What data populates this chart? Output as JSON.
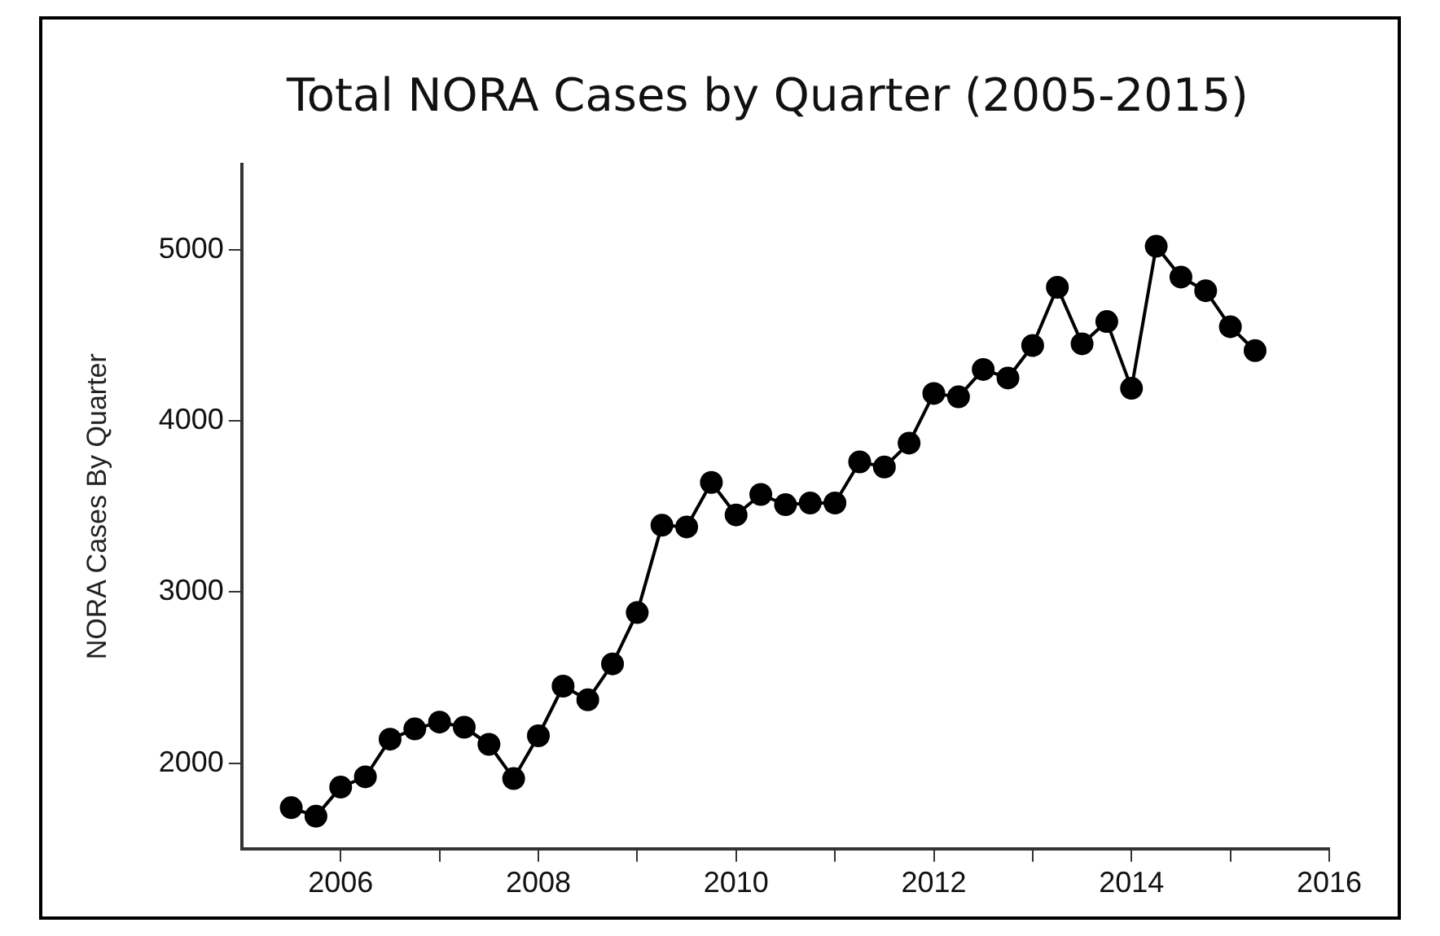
{
  "chart_data": {
    "type": "line",
    "title": "Total NORA Cases by Quarter (2005-2015)",
    "ylabel": "NORA Cases By Quarter",
    "x": [
      2005.5,
      2005.75,
      2006,
      2006.25,
      2006.5,
      2006.75,
      2007,
      2007.25,
      2007.5,
      2007.75,
      2008,
      2008.25,
      2008.5,
      2008.75,
      2009,
      2009.25,
      2009.5,
      2009.75,
      2010,
      2010.25,
      2010.5,
      2010.75,
      2011,
      2011.25,
      2011.5,
      2011.75,
      2012,
      2012.25,
      2012.5,
      2012.75,
      2013,
      2013.25,
      2013.5,
      2013.75,
      2014,
      2014.25,
      2014.5,
      2014.75,
      2015,
      2015.25
    ],
    "series": [
      {
        "color": "#000000",
        "values": [
          1740,
          1690,
          1860,
          1920,
          2140,
          2200,
          2240,
          2210,
          2110,
          1910,
          2160,
          2450,
          2370,
          2580,
          2880,
          3390,
          3380,
          3640,
          3450,
          3570,
          3510,
          3520,
          3520,
          3760,
          3730,
          3870,
          4160,
          4140,
          4300,
          4250,
          4440,
          4780,
          4450,
          4580,
          4190,
          5020,
          4840,
          4760,
          4550,
          4410
        ]
      }
    ],
    "xlim": [
      2005,
      2016
    ],
    "xticks": [
      2006,
      {
        "value": 2007,
        "label": null
      },
      2008,
      {
        "value": 2009,
        "label": null
      },
      2010,
      {
        "value": 2011,
        "label": null
      },
      2012,
      {
        "value": 2013,
        "label": null
      },
      2014,
      {
        "value": 2015,
        "label": null
      },
      2016
    ],
    "ylim": [
      1500,
      5500
    ],
    "yticks": [
      2000,
      3000,
      4000,
      5000
    ],
    "grid": false,
    "legend": false,
    "marker": "circle",
    "line_style": "solid"
  }
}
